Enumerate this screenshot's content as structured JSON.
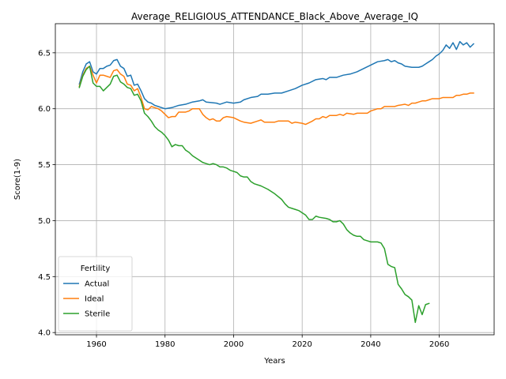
{
  "chart_data": {
    "type": "line",
    "title": "Average_RELIGIOUS_ATTENDANCE_Black_Above_Average_IQ",
    "xlabel": "Years",
    "ylabel": "Score(1-9)",
    "xlim": [
      1948,
      2076
    ],
    "ylim": [
      3.98,
      6.76
    ],
    "xticks": [
      1960,
      1980,
      2000,
      2020,
      2040,
      2060
    ],
    "yticks": [
      4.0,
      4.5,
      5.0,
      5.5,
      6.0,
      6.5
    ],
    "ytick_labels": [
      "4.0",
      "4.5",
      "5.0",
      "5.5",
      "6.0",
      "6.5"
    ],
    "grid": true,
    "legend": {
      "title": "Fertility",
      "placement": "lower-left"
    },
    "series": [
      {
        "name": "Actual",
        "color": "#1f77b4",
        "points": [
          [
            1955,
            6.22
          ],
          [
            1956,
            6.33
          ],
          [
            1957,
            6.4
          ],
          [
            1958,
            6.42
          ],
          [
            1959,
            6.33
          ],
          [
            1960,
            6.31
          ],
          [
            1961,
            6.36
          ],
          [
            1962,
            6.36
          ],
          [
            1963,
            6.38
          ],
          [
            1964,
            6.39
          ],
          [
            1965,
            6.43
          ],
          [
            1966,
            6.44
          ],
          [
            1967,
            6.38
          ],
          [
            1968,
            6.36
          ],
          [
            1969,
            6.29
          ],
          [
            1970,
            6.3
          ],
          [
            1971,
            6.21
          ],
          [
            1972,
            6.22
          ],
          [
            1973,
            6.16
          ],
          [
            1974,
            6.09
          ],
          [
            1975,
            6.06
          ],
          [
            1976,
            6.05
          ],
          [
            1977,
            6.03
          ],
          [
            1978,
            6.02
          ],
          [
            1979,
            6.01
          ],
          [
            1980,
            6.0
          ],
          [
            1982,
            6.01
          ],
          [
            1984,
            6.03
          ],
          [
            1986,
            6.04
          ],
          [
            1988,
            6.06
          ],
          [
            1990,
            6.07
          ],
          [
            1991,
            6.08
          ],
          [
            1992,
            6.06
          ],
          [
            1995,
            6.05
          ],
          [
            1996,
            6.04
          ],
          [
            1998,
            6.06
          ],
          [
            2000,
            6.05
          ],
          [
            2002,
            6.06
          ],
          [
            2003,
            6.08
          ],
          [
            2005,
            6.1
          ],
          [
            2007,
            6.11
          ],
          [
            2008,
            6.13
          ],
          [
            2010,
            6.13
          ],
          [
            2012,
            6.14
          ],
          [
            2014,
            6.14
          ],
          [
            2016,
            6.16
          ],
          [
            2018,
            6.18
          ],
          [
            2020,
            6.21
          ],
          [
            2022,
            6.23
          ],
          [
            2024,
            6.26
          ],
          [
            2026,
            6.27
          ],
          [
            2027,
            6.26
          ],
          [
            2028,
            6.28
          ],
          [
            2030,
            6.28
          ],
          [
            2032,
            6.3
          ],
          [
            2034,
            6.31
          ],
          [
            2036,
            6.33
          ],
          [
            2038,
            6.36
          ],
          [
            2040,
            6.39
          ],
          [
            2042,
            6.42
          ],
          [
            2044,
            6.43
          ],
          [
            2045,
            6.44
          ],
          [
            2046,
            6.42
          ],
          [
            2047,
            6.43
          ],
          [
            2048,
            6.41
          ],
          [
            2049,
            6.4
          ],
          [
            2050,
            6.38
          ],
          [
            2052,
            6.37
          ],
          [
            2054,
            6.37
          ],
          [
            2055,
            6.38
          ],
          [
            2056,
            6.4
          ],
          [
            2057,
            6.42
          ],
          [
            2058,
            6.44
          ],
          [
            2059,
            6.47
          ],
          [
            2060,
            6.49
          ],
          [
            2061,
            6.52
          ],
          [
            2062,
            6.57
          ],
          [
            2063,
            6.54
          ],
          [
            2064,
            6.59
          ],
          [
            2065,
            6.53
          ],
          [
            2066,
            6.6
          ],
          [
            2067,
            6.57
          ],
          [
            2068,
            6.59
          ],
          [
            2069,
            6.55
          ],
          [
            2070,
            6.58
          ]
        ]
      },
      {
        "name": "Ideal",
        "color": "#ff7f0e",
        "points": [
          [
            1955,
            6.2
          ],
          [
            1956,
            6.3
          ],
          [
            1957,
            6.36
          ],
          [
            1958,
            6.38
          ],
          [
            1959,
            6.3
          ],
          [
            1960,
            6.23
          ],
          [
            1961,
            6.3
          ],
          [
            1962,
            6.3
          ],
          [
            1963,
            6.29
          ],
          [
            1964,
            6.28
          ],
          [
            1965,
            6.34
          ],
          [
            1966,
            6.35
          ],
          [
            1967,
            6.31
          ],
          [
            1968,
            6.29
          ],
          [
            1969,
            6.22
          ],
          [
            1970,
            6.21
          ],
          [
            1971,
            6.16
          ],
          [
            1972,
            6.18
          ],
          [
            1973,
            6.1
          ],
          [
            1974,
            6.0
          ],
          [
            1975,
            5.99
          ],
          [
            1976,
            6.02
          ],
          [
            1977,
            6.01
          ],
          [
            1978,
            6.0
          ],
          [
            1979,
            5.98
          ],
          [
            1980,
            5.95
          ],
          [
            1981,
            5.92
          ],
          [
            1982,
            5.93
          ],
          [
            1983,
            5.93
          ],
          [
            1984,
            5.97
          ],
          [
            1985,
            5.97
          ],
          [
            1986,
            5.97
          ],
          [
            1987,
            5.98
          ],
          [
            1988,
            6.0
          ],
          [
            1990,
            6.0
          ],
          [
            1991,
            5.95
          ],
          [
            1992,
            5.92
          ],
          [
            1993,
            5.9
          ],
          [
            1994,
            5.91
          ],
          [
            1995,
            5.89
          ],
          [
            1996,
            5.89
          ],
          [
            1997,
            5.92
          ],
          [
            1998,
            5.93
          ],
          [
            2000,
            5.92
          ],
          [
            2002,
            5.89
          ],
          [
            2003,
            5.88
          ],
          [
            2005,
            5.87
          ],
          [
            2007,
            5.89
          ],
          [
            2008,
            5.9
          ],
          [
            2009,
            5.88
          ],
          [
            2012,
            5.88
          ],
          [
            2013,
            5.89
          ],
          [
            2016,
            5.89
          ],
          [
            2017,
            5.87
          ],
          [
            2018,
            5.88
          ],
          [
            2020,
            5.87
          ],
          [
            2021,
            5.86
          ],
          [
            2023,
            5.89
          ],
          [
            2024,
            5.91
          ],
          [
            2025,
            5.91
          ],
          [
            2026,
            5.93
          ],
          [
            2027,
            5.92
          ],
          [
            2028,
            5.94
          ],
          [
            2030,
            5.94
          ],
          [
            2031,
            5.95
          ],
          [
            2032,
            5.94
          ],
          [
            2033,
            5.96
          ],
          [
            2035,
            5.95
          ],
          [
            2036,
            5.96
          ],
          [
            2039,
            5.96
          ],
          [
            2040,
            5.98
          ],
          [
            2042,
            6.0
          ],
          [
            2043,
            6.0
          ],
          [
            2044,
            6.02
          ],
          [
            2047,
            6.02
          ],
          [
            2048,
            6.03
          ],
          [
            2050,
            6.04
          ],
          [
            2051,
            6.03
          ],
          [
            2052,
            6.05
          ],
          [
            2053,
            6.05
          ],
          [
            2054,
            6.06
          ],
          [
            2055,
            6.07
          ],
          [
            2056,
            6.07
          ],
          [
            2057,
            6.08
          ],
          [
            2058,
            6.09
          ],
          [
            2060,
            6.09
          ],
          [
            2061,
            6.1
          ],
          [
            2064,
            6.1
          ],
          [
            2065,
            6.12
          ],
          [
            2066,
            6.12
          ],
          [
            2067,
            6.13
          ],
          [
            2068,
            6.13
          ],
          [
            2069,
            6.14
          ],
          [
            2070,
            6.14
          ]
        ]
      },
      {
        "name": "Sterile",
        "color": "#2ca02c",
        "points": [
          [
            1955,
            6.19
          ],
          [
            1956,
            6.29
          ],
          [
            1957,
            6.35
          ],
          [
            1958,
            6.38
          ],
          [
            1959,
            6.23
          ],
          [
            1960,
            6.2
          ],
          [
            1961,
            6.2
          ],
          [
            1962,
            6.16
          ],
          [
            1963,
            6.19
          ],
          [
            1964,
            6.22
          ],
          [
            1965,
            6.29
          ],
          [
            1966,
            6.3
          ],
          [
            1967,
            6.24
          ],
          [
            1968,
            6.22
          ],
          [
            1969,
            6.19
          ],
          [
            1970,
            6.18
          ],
          [
            1971,
            6.12
          ],
          [
            1972,
            6.13
          ],
          [
            1973,
            6.07
          ],
          [
            1974,
            5.96
          ],
          [
            1975,
            5.93
          ],
          [
            1976,
            5.89
          ],
          [
            1977,
            5.84
          ],
          [
            1978,
            5.81
          ],
          [
            1979,
            5.79
          ],
          [
            1980,
            5.76
          ],
          [
            1981,
            5.72
          ],
          [
            1982,
            5.66
          ],
          [
            1983,
            5.68
          ],
          [
            1984,
            5.67
          ],
          [
            1985,
            5.67
          ],
          [
            1986,
            5.63
          ],
          [
            1987,
            5.61
          ],
          [
            1988,
            5.58
          ],
          [
            1990,
            5.54
          ],
          [
            1991,
            5.52
          ],
          [
            1992,
            5.51
          ],
          [
            1993,
            5.5
          ],
          [
            1994,
            5.51
          ],
          [
            1995,
            5.5
          ],
          [
            1996,
            5.48
          ],
          [
            1997,
            5.48
          ],
          [
            1998,
            5.47
          ],
          [
            1999,
            5.45
          ],
          [
            2000,
            5.44
          ],
          [
            2001,
            5.43
          ],
          [
            2002,
            5.4
          ],
          [
            2003,
            5.39
          ],
          [
            2004,
            5.39
          ],
          [
            2005,
            5.35
          ],
          [
            2006,
            5.33
          ],
          [
            2008,
            5.31
          ],
          [
            2010,
            5.28
          ],
          [
            2012,
            5.24
          ],
          [
            2014,
            5.19
          ],
          [
            2015,
            5.15
          ],
          [
            2016,
            5.12
          ],
          [
            2017,
            5.11
          ],
          [
            2018,
            5.1
          ],
          [
            2019,
            5.09
          ],
          [
            2020,
            5.07
          ],
          [
            2021,
            5.05
          ],
          [
            2022,
            5.01
          ],
          [
            2023,
            5.01
          ],
          [
            2024,
            5.04
          ],
          [
            2025,
            5.03
          ],
          [
            2027,
            5.02
          ],
          [
            2028,
            5.01
          ],
          [
            2029,
            4.99
          ],
          [
            2030,
            4.99
          ],
          [
            2031,
            5.0
          ],
          [
            2032,
            4.97
          ],
          [
            2033,
            4.92
          ],
          [
            2034,
            4.89
          ],
          [
            2035,
            4.87
          ],
          [
            2036,
            4.86
          ],
          [
            2037,
            4.86
          ],
          [
            2038,
            4.83
          ],
          [
            2039,
            4.82
          ],
          [
            2040,
            4.81
          ],
          [
            2042,
            4.81
          ],
          [
            2043,
            4.8
          ],
          [
            2044,
            4.75
          ],
          [
            2045,
            4.61
          ],
          [
            2046,
            4.59
          ],
          [
            2047,
            4.58
          ],
          [
            2048,
            4.43
          ],
          [
            2049,
            4.39
          ],
          [
            2050,
            4.34
          ],
          [
            2051,
            4.32
          ],
          [
            2052,
            4.29
          ],
          [
            2053,
            4.09
          ],
          [
            2054,
            4.24
          ],
          [
            2055,
            4.16
          ],
          [
            2056,
            4.25
          ],
          [
            2057,
            4.26
          ]
        ]
      }
    ]
  }
}
